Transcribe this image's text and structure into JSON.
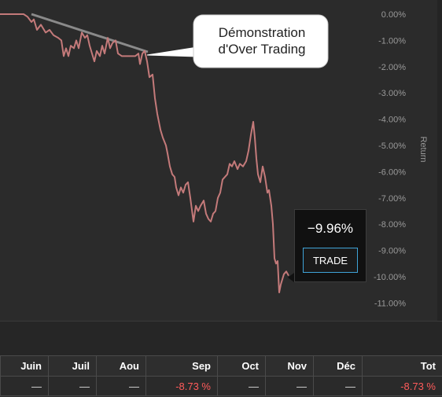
{
  "chart_data": {
    "type": "line",
    "ylabel": "Return",
    "y_ticks": [
      "0.00%",
      "-1.00%",
      "-2.00%",
      "-3.00%",
      "-4.00%",
      "-5.00%",
      "-6.00%",
      "-7.00%",
      "-8.00%",
      "-9.00%",
      "-10.00%",
      "-11.00%"
    ],
    "ylim": [
      -11.2,
      0.4
    ],
    "xlim": [
      0,
      380
    ],
    "grid": false,
    "series": [
      {
        "color": "#c47a7a",
        "points": [
          [
            0,
            0
          ],
          [
            30,
            0
          ],
          [
            35,
            -0.1
          ],
          [
            40,
            -0.3
          ],
          [
            43,
            -0.2
          ],
          [
            47,
            -0.6
          ],
          [
            52,
            -0.4
          ],
          [
            58,
            -0.7
          ],
          [
            63,
            -0.6
          ],
          [
            68,
            -0.8
          ],
          [
            74,
            -0.9
          ],
          [
            78,
            -1.0
          ],
          [
            81,
            -1.6
          ],
          [
            84,
            -1.3
          ],
          [
            87,
            -1.6
          ],
          [
            90,
            -1.2
          ],
          [
            94,
            -1.3
          ],
          [
            97,
            -1.0
          ],
          [
            100,
            -1.3
          ],
          [
            104,
            -0.7
          ],
          [
            108,
            -0.9
          ],
          [
            111,
            -0.8
          ],
          [
            114,
            -1.2
          ],
          [
            117,
            -1.5
          ],
          [
            120,
            -1.8
          ],
          [
            123,
            -1.4
          ],
          [
            127,
            -1.6
          ],
          [
            130,
            -1.2
          ],
          [
            133,
            -1.5
          ],
          [
            137,
            -0.9
          ],
          [
            140,
            -1.3
          ],
          [
            143,
            -1.1
          ],
          [
            147,
            -1.0
          ],
          [
            150,
            -1.5
          ],
          [
            155,
            -1.6
          ],
          [
            160,
            -1.6
          ],
          [
            166,
            -1.6
          ],
          [
            172,
            -1.6
          ],
          [
            176,
            -1.5
          ],
          [
            178,
            -1.9
          ],
          [
            181,
            -1.5
          ],
          [
            184,
            -1.4
          ],
          [
            187,
            -1.8
          ],
          [
            190,
            -2.4
          ],
          [
            194,
            -2.3
          ],
          [
            197,
            -3.2
          ],
          [
            200,
            -3.8
          ],
          [
            204,
            -4.4
          ],
          [
            207,
            -4.7
          ],
          [
            211,
            -5.0
          ],
          [
            213,
            -5.3
          ],
          [
            216,
            -5.8
          ],
          [
            219,
            -6.1
          ],
          [
            222,
            -6.2
          ],
          [
            224,
            -6.6
          ],
          [
            227,
            -6.9
          ],
          [
            230,
            -6.6
          ],
          [
            233,
            -6.8
          ],
          [
            236,
            -6.5
          ],
          [
            239,
            -6.4
          ],
          [
            242,
            -7.0
          ],
          [
            246,
            -7.9
          ],
          [
            249,
            -7.3
          ],
          [
            252,
            -7.5
          ],
          [
            255,
            -7.3
          ],
          [
            259,
            -7.1
          ],
          [
            262,
            -7.6
          ],
          [
            265,
            -7.8
          ],
          [
            268,
            -7.9
          ],
          [
            271,
            -7.6
          ],
          [
            274,
            -7.5
          ],
          [
            277,
            -7.0
          ],
          [
            280,
            -6.8
          ],
          [
            283,
            -6.3
          ],
          [
            286,
            -6.2
          ],
          [
            289,
            -6.1
          ],
          [
            292,
            -5.7
          ],
          [
            295,
            -5.8
          ],
          [
            298,
            -5.6
          ],
          [
            302,
            -5.9
          ],
          [
            305,
            -5.7
          ],
          [
            309,
            -5.8
          ],
          [
            313,
            -5.6
          ],
          [
            316,
            -5.2
          ],
          [
            319,
            -4.6
          ],
          [
            322,
            -4.1
          ],
          [
            324,
            -4.7
          ],
          [
            326,
            -5.5
          ],
          [
            328,
            -6.1
          ],
          [
            331,
            -6.4
          ],
          [
            334,
            -5.8
          ],
          [
            337,
            -6.2
          ],
          [
            340,
            -6.8
          ],
          [
            342,
            -6.7
          ],
          [
            345,
            -7.3
          ],
          [
            347,
            -8.0
          ],
          [
            349,
            -9.3
          ],
          [
            351,
            -9.5
          ],
          [
            353,
            -9.4
          ],
          [
            355,
            -10.6
          ],
          [
            357,
            -10.3
          ],
          [
            359,
            -10.1
          ],
          [
            361,
            -9.9
          ],
          [
            364,
            -9.8
          ],
          [
            367,
            -9.96
          ]
        ]
      }
    ],
    "annotation": {
      "text_line1": "Démonstration",
      "text_line2": "d'Over Trading"
    }
  },
  "tooltip": {
    "value": "−9.96%",
    "button_label": "TRADE"
  },
  "table": {
    "headers": [
      "Juin",
      "Juil",
      "Aou",
      "Sep",
      "Oct",
      "Nov",
      "Déc",
      "Tot"
    ],
    "values": [
      "—",
      "—",
      "—",
      "-8.73 %",
      "—",
      "—",
      "—",
      "-8.73 %"
    ],
    "negative_color": "#ff5b5b"
  }
}
